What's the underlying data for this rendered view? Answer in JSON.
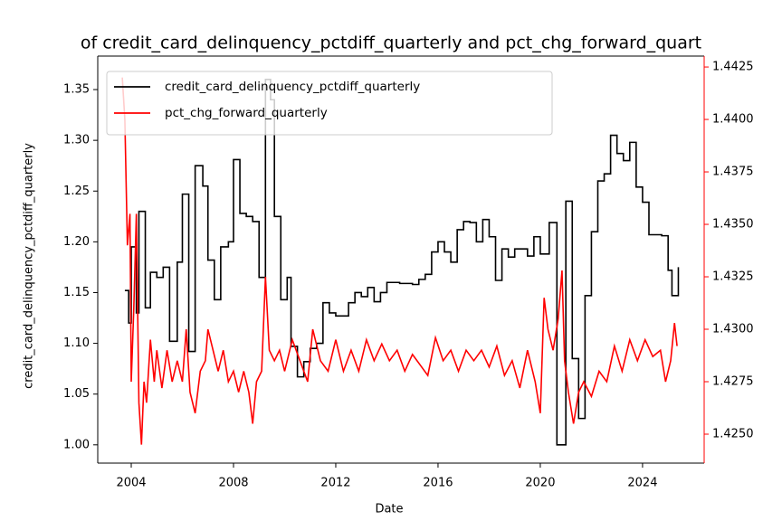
{
  "chart_data": {
    "type": "line",
    "title": "of credit_card_delinquency_pctdiff_quarterly and pct_chg_forward_quart",
    "xlabel": "Date",
    "ylabel": "credit_card_delinquency_pctdiff_quarterly",
    "xlim": [
      2002.69,
      2026.41
    ],
    "xticks": [
      2004,
      2008,
      2012,
      2016,
      2020,
      2024
    ],
    "ylim": [
      0.982,
      1.383
    ],
    "yticks": [
      {
        "value": 1,
        "label": "1.00"
      },
      1.05,
      {
        "value": 1.1,
        "label": "1.10"
      },
      1.15,
      {
        "value": 1.2,
        "label": "1.20"
      },
      1.25,
      {
        "value": 1.3,
        "label": "1.30"
      },
      1.35
    ],
    "y2lim": [
      1.42362,
      1.44302
    ],
    "y2ticks": [
      {
        "value": 1.425,
        "label": "1.4250"
      },
      1.4275,
      {
        "value": 1.43,
        "label": "1.4300"
      },
      1.4325,
      {
        "value": 1.435,
        "label": "1.4350"
      },
      1.4375,
      {
        "value": 1.44,
        "label": "1.4400"
      },
      1.4425
    ],
    "y2color": "#ff0000",
    "legend": "upper left",
    "series": [
      {
        "name": "credit_card_delinquency_pctdiff_quarterly",
        "color": "#000000",
        "step": "post",
        "x": [
          2003.75,
          2003.9,
          2004.0,
          2004.2,
          2004.3,
          2004.55,
          2004.75,
          2005.0,
          2005.25,
          2005.5,
          2005.8,
          2006.0,
          2006.25,
          2006.5,
          2006.8,
          2007.0,
          2007.25,
          2007.5,
          2007.8,
          2008.0,
          2008.25,
          2008.5,
          2008.75,
          2009.0,
          2009.25,
          2009.45,
          2009.6,
          2009.85,
          2010.1,
          2010.25,
          2010.5,
          2010.75,
          2011.0,
          2011.25,
          2011.5,
          2011.75,
          2012.0,
          2012.25,
          2012.5,
          2012.75,
          2013.0,
          2013.25,
          2013.5,
          2013.75,
          2014.0,
          2014.5,
          2015.0,
          2015.25,
          2015.5,
          2015.75,
          2016.0,
          2016.25,
          2016.5,
          2016.75,
          2017.0,
          2017.25,
          2017.5,
          2017.75,
          2018.0,
          2018.25,
          2018.5,
          2018.75,
          2019.0,
          2019.5,
          2019.75,
          2020.0,
          2020.35,
          2020.65,
          2021.0,
          2021.25,
          2021.5,
          2021.75,
          2022.0,
          2022.25,
          2022.5,
          2022.75,
          2023.0,
          2023.25,
          2023.5,
          2023.75,
          2024.0,
          2024.25,
          2024.75,
          2025.0,
          2025.15,
          2025.4
        ],
        "values": [
          1.152,
          1.12,
          1.195,
          1.13,
          1.23,
          1.135,
          1.17,
          1.165,
          1.175,
          1.102,
          1.18,
          1.247,
          1.092,
          1.275,
          1.255,
          1.182,
          1.143,
          1.195,
          1.2,
          1.281,
          1.228,
          1.225,
          1.22,
          1.165,
          1.36,
          1.34,
          1.225,
          1.143,
          1.165,
          1.097,
          1.067,
          1.082,
          1.095,
          1.1,
          1.14,
          1.13,
          1.127,
          1.127,
          1.14,
          1.15,
          1.146,
          1.155,
          1.141,
          1.15,
          1.16,
          1.159,
          1.158,
          1.163,
          1.168,
          1.19,
          1.2,
          1.19,
          1.18,
          1.212,
          1.22,
          1.219,
          1.2,
          1.222,
          1.205,
          1.162,
          1.193,
          1.185,
          1.193,
          1.186,
          1.205,
          1.188,
          1.219,
          1.0,
          1.24,
          1.085,
          1.026,
          1.147,
          1.21,
          1.26,
          1.267,
          1.305,
          1.287,
          1.28,
          1.298,
          1.254,
          1.239,
          1.207,
          1.206,
          1.172,
          1.147,
          1.175
        ]
      },
      {
        "name": "pct_chg_forward_quarterly",
        "color": "#ff0000",
        "axis": "y2",
        "x": [
          2003.65,
          2003.75,
          2003.85,
          2003.95,
          2004.0,
          2004.1,
          2004.2,
          2004.3,
          2004.4,
          2004.5,
          2004.6,
          2004.75,
          2004.9,
          2005.0,
          2005.2,
          2005.4,
          2005.6,
          2005.8,
          2006.0,
          2006.15,
          2006.3,
          2006.5,
          2006.7,
          2006.9,
          2007.0,
          2007.2,
          2007.4,
          2007.6,
          2007.8,
          2008.0,
          2008.2,
          2008.4,
          2008.6,
          2008.75,
          2008.9,
          2009.1,
          2009.25,
          2009.4,
          2009.6,
          2009.8,
          2010.0,
          2010.3,
          2010.6,
          2010.9,
          2011.1,
          2011.4,
          2011.7,
          2012.0,
          2012.3,
          2012.6,
          2012.9,
          2013.2,
          2013.5,
          2013.8,
          2014.1,
          2014.4,
          2014.7,
          2015.0,
          2015.3,
          2015.6,
          2015.9,
          2016.2,
          2016.5,
          2016.8,
          2017.1,
          2017.4,
          2017.7,
          2018.0,
          2018.3,
          2018.6,
          2018.9,
          2019.2,
          2019.5,
          2019.8,
          2020.0,
          2020.15,
          2020.3,
          2020.5,
          2020.7,
          2020.85,
          2020.95,
          2021.1,
          2021.3,
          2021.5,
          2021.7,
          2022.0,
          2022.3,
          2022.6,
          2022.9,
          2023.2,
          2023.5,
          2023.8,
          2024.1,
          2024.4,
          2024.7,
          2024.9,
          2025.1,
          2025.25,
          2025.35
        ],
        "values": [
          1.442,
          1.44,
          1.434,
          1.4355,
          1.4275,
          1.431,
          1.4355,
          1.4265,
          1.4245,
          1.4275,
          1.4265,
          1.4295,
          1.4275,
          1.429,
          1.4272,
          1.429,
          1.4275,
          1.4285,
          1.4275,
          1.43,
          1.427,
          1.426,
          1.428,
          1.4285,
          1.43,
          1.429,
          1.428,
          1.429,
          1.4275,
          1.428,
          1.427,
          1.428,
          1.427,
          1.4255,
          1.4275,
          1.428,
          1.4325,
          1.429,
          1.4285,
          1.429,
          1.428,
          1.4295,
          1.4285,
          1.4275,
          1.43,
          1.4285,
          1.428,
          1.4295,
          1.428,
          1.429,
          1.428,
          1.4295,
          1.4285,
          1.4293,
          1.4285,
          1.429,
          1.428,
          1.4288,
          1.4283,
          1.4278,
          1.4296,
          1.4285,
          1.429,
          1.428,
          1.429,
          1.4285,
          1.429,
          1.4282,
          1.4292,
          1.4278,
          1.4285,
          1.4272,
          1.429,
          1.4275,
          1.426,
          1.4315,
          1.43,
          1.429,
          1.4305,
          1.4328,
          1.4285,
          1.427,
          1.4255,
          1.427,
          1.4275,
          1.4268,
          1.428,
          1.4275,
          1.4292,
          1.428,
          1.4295,
          1.4285,
          1.4295,
          1.4287,
          1.429,
          1.4275,
          1.4285,
          1.4303,
          1.4292
        ]
      }
    ]
  }
}
